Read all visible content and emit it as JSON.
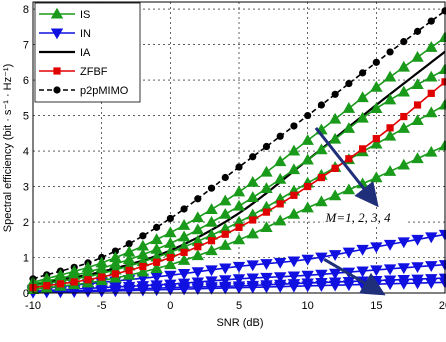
{
  "chart_data": {
    "type": "line",
    "title": "",
    "xlabel": "SNR (dB)",
    "ylabel": "Spectral efficiency (bit · s⁻¹ · Hz⁻¹)",
    "xlim": [
      -10,
      20
    ],
    "ylim": [
      0,
      8.2
    ],
    "x_ticks": [
      "-10",
      "-5",
      "0",
      "5",
      "10",
      "15",
      "20"
    ],
    "y_ticks": [
      "0",
      "1",
      "2",
      "3",
      "4",
      "5",
      "6",
      "7",
      "8"
    ],
    "grid": true,
    "legend_position": "top-left",
    "legend": [
      {
        "label": "IS",
        "color": "#1a9a1a",
        "marker": "triangle-up"
      },
      {
        "label": "IN",
        "color": "#1010e0",
        "marker": "triangle-down"
      },
      {
        "label": "IA",
        "color": "#000000",
        "marker": "none"
      },
      {
        "label": "ZFBF",
        "color": "#e00000",
        "marker": "square"
      },
      {
        "label": "p2pMIMO",
        "color": "#000000",
        "marker": "circle",
        "dashed": true
      }
    ],
    "series": [
      {
        "legend": 0,
        "style": "IS",
        "x": [
          -10,
          -5,
          0,
          5,
          10,
          15,
          20
        ],
        "values": [
          0.1,
          0.35,
          0.8,
          1.5,
          2.4,
          3.25,
          4.15
        ]
      },
      {
        "legend": 0,
        "style": "IS",
        "x": [
          -10,
          -5,
          0,
          5,
          10,
          15,
          20
        ],
        "values": [
          0.2,
          0.55,
          1.15,
          2.0,
          3.1,
          4.2,
          5.3
        ]
      },
      {
        "legend": 0,
        "style": "IS",
        "x": [
          -10,
          -5,
          0,
          5,
          10,
          15,
          20
        ],
        "values": [
          0.25,
          0.7,
          1.4,
          2.45,
          3.75,
          5.2,
          6.3
        ]
      },
      {
        "legend": 0,
        "style": "IS",
        "x": [
          -10,
          -5,
          0,
          5,
          10,
          15,
          20
        ],
        "values": [
          0.3,
          0.85,
          1.7,
          2.85,
          4.3,
          5.8,
          7.2
        ]
      },
      {
        "legend": 1,
        "style": "IN",
        "x": [
          -10,
          -5,
          0,
          5,
          10,
          15,
          20
        ],
        "values": [
          0.1,
          0.3,
          0.5,
          0.75,
          0.95,
          1.3,
          1.65
        ]
      },
      {
        "legend": 1,
        "style": "IN",
        "x": [
          -10,
          -5,
          0,
          5,
          10,
          15,
          20
        ],
        "values": [
          0.05,
          0.15,
          0.25,
          0.4,
          0.5,
          0.65,
          0.8
        ]
      },
      {
        "legend": 1,
        "style": "IN",
        "x": [
          -10,
          -5,
          0,
          5,
          10,
          15,
          20
        ],
        "values": [
          0.03,
          0.08,
          0.15,
          0.2,
          0.28,
          0.35,
          0.42
        ]
      },
      {
        "legend": 1,
        "style": "IN",
        "x": [
          -10,
          -5,
          0,
          5,
          10,
          15,
          20
        ],
        "values": [
          0.02,
          0.05,
          0.1,
          0.15,
          0.2,
          0.25,
          0.3
        ]
      },
      {
        "legend": 2,
        "style": "IA",
        "x": [
          -10,
          -5,
          0,
          5,
          10,
          15,
          20
        ],
        "values": [
          0.25,
          0.6,
          1.2,
          2.25,
          3.75,
          5.3,
          6.8
        ]
      },
      {
        "legend": 3,
        "style": "ZFBF",
        "x": [
          -10,
          -5,
          0,
          5,
          10,
          15,
          20
        ],
        "values": [
          0.15,
          0.45,
          1.0,
          1.85,
          3.0,
          4.35,
          5.95
        ]
      },
      {
        "legend": 4,
        "style": "p2pMIMO",
        "x": [
          -10,
          -5,
          0,
          5,
          10,
          15,
          20
        ],
        "values": [
          0.4,
          1.0,
          2.1,
          3.55,
          5.0,
          6.5,
          7.95
        ]
      }
    ],
    "annotations": [
      {
        "text": "M=1, 2, 3, 4",
        "x": 11.3,
        "y": 2.0
      }
    ],
    "arrows": [
      {
        "from": [
          10.6,
          4.65
        ],
        "to": [
          14.9,
          2.55
        ]
      },
      {
        "from": [
          11.2,
          0.95
        ],
        "to": [
          15.3,
          0.02
        ]
      }
    ]
  }
}
